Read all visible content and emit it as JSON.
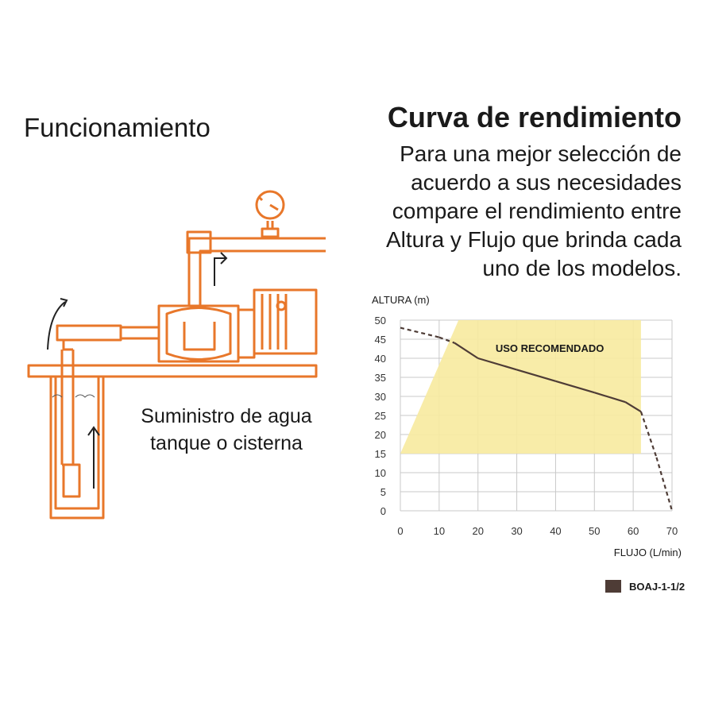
{
  "left": {
    "title": "Funcionamiento",
    "caption": [
      "Suministro de agua",
      "tanque o cisterna"
    ]
  },
  "chart_data": {
    "type": "line",
    "title": "Curva de rendimiento",
    "subtitle": [
      "Para una mejor selección de",
      "acuerdo a sus necesidades",
      "compare el rendimiento entre",
      "Altura y Flujo que brinda cada",
      "uno de los modelos."
    ],
    "y_label": "ALTURA (m)",
    "x_label": "FLUJO (L/min)",
    "annotation": "USO RECOMENDADO",
    "recommended_region": {
      "x": [
        0,
        15,
        62,
        62
      ],
      "y": [
        15,
        50,
        50,
        15
      ],
      "color": "#f7ea9e"
    },
    "x": [
      0,
      10,
      14,
      20,
      30,
      40,
      50,
      58,
      62,
      66,
      70
    ],
    "series": [
      {
        "name": "BOAJ-1-1/2",
        "color": "#4e3c36",
        "values": [
          48,
          45.5,
          44,
          40,
          37,
          34,
          31,
          28.5,
          26,
          14,
          0
        ]
      }
    ],
    "xlim": [
      0,
      70
    ],
    "ylim": [
      0,
      50
    ],
    "xticks": [
      0,
      10,
      20,
      30,
      40,
      50,
      60,
      70
    ],
    "yticks": [
      0,
      5,
      10,
      15,
      20,
      25,
      30,
      35,
      40,
      45,
      50
    ],
    "grid": true
  }
}
